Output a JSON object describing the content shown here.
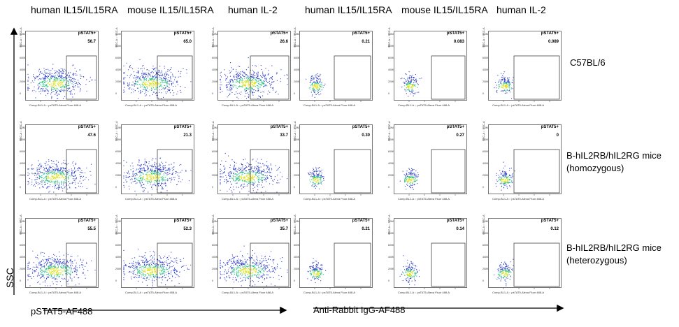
{
  "column_headers": [
    "human IL15/IL15RA",
    "mouse IL15/IL15RA",
    "human IL-2",
    "human IL15/IL15RA",
    "mouse IL15/IL15RA",
    "human IL-2"
  ],
  "row_labels": [
    [
      "C57BL/6"
    ],
    [
      "B-hIL2RB/hIL2RG mice",
      "(homozygous)"
    ],
    [
      "B-hIL2RB/hIL2RG mice",
      "(heterozygous)"
    ]
  ],
  "y_axis_label": "SSC",
  "x_axis_label_left": "pSTAT5-AF488",
  "x_axis_label_right": "Anti-Rabbit IgG-AF488",
  "gate_name": "pSTAT5+",
  "plot_y_title": "SSC-A :: SSC-A",
  "plot_x_title": "Comp-BL1-A :: psTAT5-Alexa Fluor 488-A",
  "y_ticks": [
    "1.0M",
    "800K",
    "600K",
    "400K",
    "200K",
    "0"
  ],
  "gate_percentages": [
    [
      "56.7",
      "65.0",
      "26.6",
      "0.21",
      "0.083",
      "0.089"
    ],
    [
      "47.6",
      "21.3",
      "33.7",
      "0.30",
      "0.27",
      "0"
    ],
    [
      "55.5",
      "52.3",
      "35.7",
      "0.21",
      "0.14",
      "0.12"
    ]
  ],
  "colors": {
    "dot_low": "#2a3cc8",
    "dot_mid": "#26c080",
    "dot_high": "#e0e020",
    "gate_line": "#444444"
  }
}
